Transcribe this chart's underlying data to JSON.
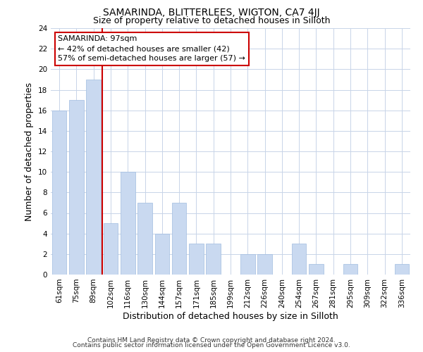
{
  "title": "SAMARINDA, BLITTERLEES, WIGTON, CA7 4JJ",
  "subtitle": "Size of property relative to detached houses in Silloth",
  "xlabel": "Distribution of detached houses by size in Silloth",
  "ylabel": "Number of detached properties",
  "bar_labels": [
    "61sqm",
    "75sqm",
    "89sqm",
    "102sqm",
    "116sqm",
    "130sqm",
    "144sqm",
    "157sqm",
    "171sqm",
    "185sqm",
    "199sqm",
    "212sqm",
    "226sqm",
    "240sqm",
    "254sqm",
    "267sqm",
    "281sqm",
    "295sqm",
    "309sqm",
    "322sqm",
    "336sqm"
  ],
  "bar_values": [
    16,
    17,
    19,
    5,
    10,
    7,
    4,
    7,
    3,
    3,
    0,
    2,
    2,
    0,
    3,
    1,
    0,
    1,
    0,
    0,
    1
  ],
  "bar_color": "#c9d9f0",
  "bar_edge_color": "#a0bce0",
  "highlight_line_color": "#cc0000",
  "highlight_line_index": 2,
  "annotation_title": "SAMARINDA: 97sqm",
  "annotation_line1": "← 42% of detached houses are smaller (42)",
  "annotation_line2": "57% of semi-detached houses are larger (57) →",
  "annotation_box_color": "#ffffff",
  "annotation_box_edge": "#cc0000",
  "ylim": [
    0,
    24
  ],
  "yticks": [
    0,
    2,
    4,
    6,
    8,
    10,
    12,
    14,
    16,
    18,
    20,
    22,
    24
  ],
  "footer1": "Contains HM Land Registry data © Crown copyright and database right 2024.",
  "footer2": "Contains public sector information licensed under the Open Government Licence v3.0.",
  "bg_color": "#ffffff",
  "grid_color": "#c8d4e8",
  "title_fontsize": 10,
  "subtitle_fontsize": 9,
  "axis_label_fontsize": 9,
  "tick_fontsize": 7.5,
  "annotation_fontsize": 8,
  "footer_fontsize": 6.5
}
